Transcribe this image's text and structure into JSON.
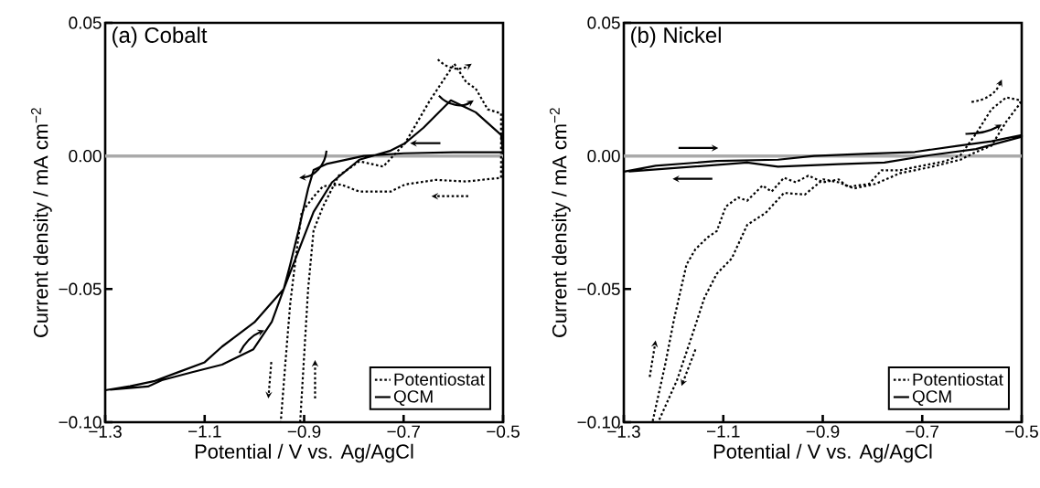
{
  "chart_data": [
    {
      "type": "line",
      "annotations": [
        "(a) Cobalt"
      ],
      "xlabel": "Potential / V vs. Ag/AgCl",
      "ylabel": "Current density / mA cm$^{−2}$",
      "xlim": [
        -1.3,
        -0.5
      ],
      "ylim": [
        -0.1,
        0.05
      ],
      "xticks": [
        {
          "value": -1.3,
          "label": "−1.3"
        },
        {
          "value": -1.1,
          "label": "−1.1"
        },
        {
          "value": -0.9,
          "label": "−0.9"
        },
        {
          "value": -0.7,
          "label": "−0.7"
        },
        {
          "value": -0.5,
          "label": "−0.5"
        }
      ],
      "yticks": [
        {
          "value": 0.05,
          "label": "0.05"
        },
        {
          "value": 0,
          "label": "0.00"
        },
        {
          "value": -0.05,
          "label": "−0.05"
        },
        {
          "value": -0.1,
          "label": "−0.10"
        }
      ],
      "ref_lines": [
        {
          "axis": "y",
          "value": 0,
          "color": "#aaaaaa"
        }
      ],
      "legend": "bottom right",
      "grid": false,
      "marker": "none",
      "series": [
        {
          "name": "Potentiostat",
          "color": "#000000",
          "line_style": "dotted",
          "x": [
            -0.908,
            -0.892,
            -0.881,
            -0.862,
            -0.831,
            -0.789,
            -0.741,
            -0.697,
            -0.647,
            -0.598,
            -0.574,
            -0.555,
            -0.531,
            -0.504,
            -0.504,
            -0.574,
            -0.635,
            -0.697,
            -0.726,
            -0.789,
            -0.826,
            -0.862,
            -0.881,
            -0.905,
            -0.917,
            -0.928,
            -0.938,
            -0.947
          ],
          "values": [
            -0.1,
            -0.05,
            -0.028,
            -0.019,
            -0.0075,
            -0.002,
            -0.004,
            0.0048,
            0.0209,
            0.0346,
            0.0277,
            0.0253,
            0.0175,
            0.016,
            -0.0082,
            -0.0096,
            -0.009,
            -0.0107,
            -0.0134,
            -0.0134,
            -0.0107,
            -0.0114,
            -0.0153,
            -0.0212,
            -0.0384,
            -0.0555,
            -0.0784,
            -0.1
          ]
        },
        {
          "name": "QCM",
          "color": "#000000",
          "line_style": "solid",
          "x": [
            -1.3,
            -1.25,
            -1.2,
            -1.15,
            -1.1,
            -1.065,
            -1.0,
            -0.941,
            -0.881,
            -0.844,
            -0.789,
            -0.726,
            -0.697,
            -0.66,
            -0.605,
            -0.555,
            -0.504,
            -0.5,
            -0.6,
            -0.7,
            -0.78,
            -0.855,
            -0.881,
            -0.892,
            -0.91,
            -0.928,
            -0.941,
            -0.965,
            -1.002,
            -1.065,
            -1.125,
            -1.186,
            -1.214,
            -1.29
          ],
          "values": [
            -0.088,
            -0.0865,
            -0.0845,
            -0.081,
            -0.0775,
            -0.0716,
            -0.0625,
            -0.05,
            -0.021,
            -0.0099,
            -0.0014,
            0.002,
            0.0048,
            0.0106,
            0.0209,
            0.0164,
            0.0079,
            0.0014,
            0.0014,
            0.001,
            0.0,
            -0.003,
            -0.0053,
            -0.0123,
            -0.027,
            -0.0408,
            -0.05,
            -0.0623,
            -0.0726,
            -0.0784,
            -0.0812,
            -0.0842,
            -0.0866,
            -0.0878
          ]
        }
      ]
    },
    {
      "type": "line",
      "annotations": [
        "(b) Nickel"
      ],
      "xlabel": "Potential / V vs. Ag/AgCl",
      "ylabel": "Current density / mA cm$^{−2}$",
      "xlim": [
        -1.3,
        -0.5
      ],
      "ylim": [
        -0.1,
        0.05
      ],
      "xticks": [
        {
          "value": -1.3,
          "label": "−1.3"
        },
        {
          "value": -1.1,
          "label": "−1.1"
        },
        {
          "value": -0.9,
          "label": "−0.9"
        },
        {
          "value": -0.7,
          "label": "−0.7"
        },
        {
          "value": -0.5,
          "label": "−0.5"
        }
      ],
      "yticks": [
        {
          "value": 0.05,
          "label": "0.05"
        },
        {
          "value": 0,
          "label": "0.00"
        },
        {
          "value": -0.05,
          "label": "−0.05"
        },
        {
          "value": -0.1,
          "label": "−0.10"
        }
      ],
      "ref_lines": [
        {
          "axis": "y",
          "value": 0,
          "color": "#aaaaaa"
        }
      ],
      "legend": "bottom right",
      "grid": false,
      "marker": "none",
      "series": [
        {
          "name": "Potentiostat",
          "color": "#000000",
          "line_style": "dotted",
          "x": [
            -1.242,
            -1.217,
            -1.199,
            -1.174,
            -1.156,
            -1.131,
            -1.113,
            -1.095,
            -1.07,
            -1.052,
            -1.021,
            -1.003,
            -0.978,
            -0.954,
            -0.929,
            -0.899,
            -0.868,
            -0.85,
            -0.807,
            -0.782,
            -0.745,
            -0.715,
            -0.684,
            -0.653,
            -0.623,
            -0.592,
            -0.561,
            -0.531,
            -0.503,
            -0.503,
            -0.531,
            -0.561,
            -0.592,
            -0.623,
            -0.684,
            -0.745,
            -0.794,
            -0.837,
            -0.868,
            -0.899,
            -0.936,
            -0.978,
            -1.015,
            -1.052,
            -1.083,
            -1.113,
            -1.138,
            -1.162,
            -1.193,
            -1.23
          ],
          "values": [
            -0.0996,
            -0.0785,
            -0.0613,
            -0.0408,
            -0.035,
            -0.0305,
            -0.0282,
            -0.019,
            -0.0156,
            -0.0168,
            -0.0111,
            -0.0134,
            -0.0082,
            -0.0099,
            -0.0074,
            -0.0099,
            -0.0088,
            -0.0116,
            -0.0105,
            -0.0054,
            -0.0054,
            -0.0042,
            -0.0031,
            -0.0019,
            0.0003,
            0.0083,
            0.0175,
            0.022,
            0.0209,
            0.0198,
            0.0129,
            0.0038,
            0.0015,
            -0.0014,
            -0.0042,
            -0.0065,
            -0.0105,
            -0.0122,
            -0.0099,
            -0.0088,
            -0.0145,
            -0.0139,
            -0.0214,
            -0.0259,
            -0.0385,
            -0.0442,
            -0.0533,
            -0.067,
            -0.0842,
            -0.0996
          ]
        },
        {
          "name": "QCM",
          "color": "#000000",
          "line_style": "solid",
          "x": [
            -1.3,
            -1.236,
            -1.113,
            -0.99,
            -0.917,
            -0.807,
            -0.715,
            -0.629,
            -0.561,
            -0.5,
            -0.5,
            -0.592,
            -0.684,
            -0.776,
            -0.868,
            -0.99,
            -1.052,
            -1.174,
            -1.29
          ],
          "values": [
            -0.0059,
            -0.0037,
            -0.0019,
            -0.0014,
            0.0,
            0.0009,
            0.0015,
            0.0038,
            0.0055,
            0.0078,
            0.0072,
            0.0026,
            0.0003,
            -0.0025,
            -0.0031,
            -0.004,
            -0.0025,
            -0.0042,
            -0.0058
          ]
        }
      ]
    }
  ]
}
